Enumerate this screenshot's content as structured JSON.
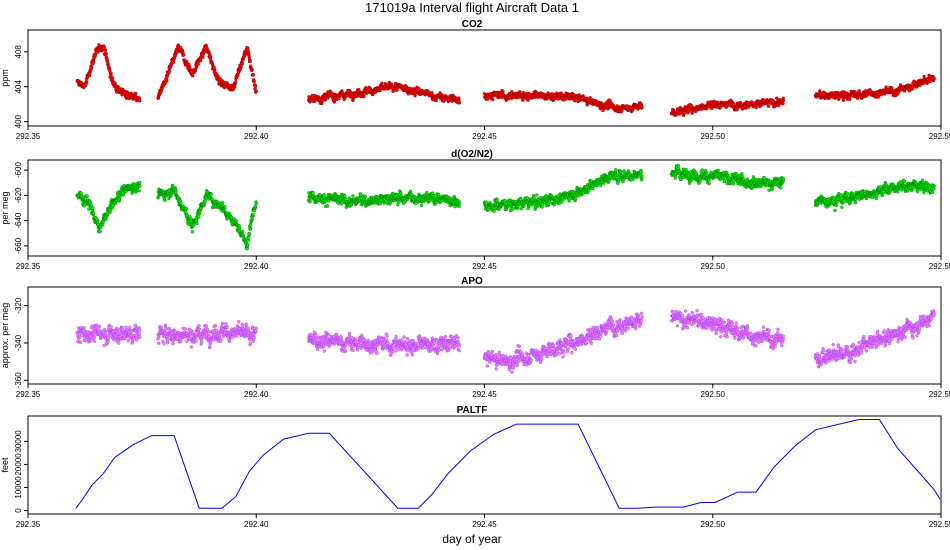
{
  "title": "171019a   Interval flight Aircraft Data 1",
  "xlabel": "day of year",
  "chart_data": [
    {
      "type": "scatter",
      "title": "CO2",
      "ylabel": "ppm",
      "color": "#ff0000",
      "edge": "#8b0000",
      "xlim": [
        292.35,
        292.55
      ],
      "ylim": [
        399.5,
        410.5
      ],
      "xticks": [
        "292.35",
        "292.40",
        "292.45",
        "292.50",
        "292.55"
      ],
      "xtick_values": [
        292.35,
        292.4,
        292.45,
        292.5,
        292.55
      ],
      "yticks": [
        "400",
        "404",
        "408"
      ],
      "ytick_values": [
        400,
        404,
        408
      ],
      "noise": 0.4,
      "segments": [
        {
          "x": [
            292.3608,
            292.3625,
            292.3645,
            292.3665,
            292.3685,
            292.3705,
            292.3725,
            292.3745
          ],
          "y": [
            404.5,
            404.0,
            407.5,
            408.8,
            404.5,
            403.5,
            403.0,
            402.5
          ]
        },
        {
          "x": [
            292.3785,
            292.38,
            292.383,
            292.386,
            292.389,
            292.392,
            292.395,
            292.398,
            292.4
          ],
          "y": [
            403.0,
            404.5,
            408.5,
            405.5,
            408.5,
            404.5,
            404.0,
            408.5,
            403.5
          ]
        },
        {
          "x": [
            292.4115,
            292.418,
            292.425,
            292.43,
            292.435,
            292.44,
            292.4445
          ],
          "y": [
            402.5,
            403.0,
            403.5,
            404.0,
            403.5,
            402.8,
            402.5
          ]
        },
        {
          "x": [
            292.45,
            292.46,
            292.47,
            292.475,
            292.48,
            292.4845
          ],
          "y": [
            403.0,
            403.0,
            402.8,
            402.0,
            401.5,
            401.8
          ]
        },
        {
          "x": [
            292.491,
            292.5,
            292.51,
            292.5155
          ],
          "y": [
            401.0,
            402.0,
            402.0,
            402.3
          ]
        },
        {
          "x": [
            292.5225,
            292.53,
            292.54,
            292.5485
          ],
          "y": [
            403.0,
            403.0,
            403.5,
            405.0
          ]
        }
      ]
    },
    {
      "type": "scatter",
      "title": "d(O2/N2)",
      "ylabel": "per meg",
      "color": "#00ee00",
      "edge": "#006400",
      "xlim": [
        292.35,
        292.55
      ],
      "ylim": [
        -668,
        -592
      ],
      "xticks": [
        "292.35",
        "292.40",
        "292.45",
        "292.50",
        "292.55"
      ],
      "xtick_values": [
        292.35,
        292.4,
        292.45,
        292.5,
        292.55
      ],
      "yticks": [
        "-660",
        "-640",
        "-620",
        "-600"
      ],
      "ytick_values": [
        -660,
        -640,
        -620,
        -600
      ],
      "noise": 4,
      "segments": [
        {
          "x": [
            292.3608,
            292.3635,
            292.3655,
            292.368,
            292.371,
            292.3745
          ],
          "y": [
            -620,
            -625,
            -648,
            -630,
            -615,
            -612
          ]
        },
        {
          "x": [
            292.3785,
            292.382,
            292.386,
            292.389,
            292.393,
            292.396,
            292.398,
            292.4
          ],
          "y": [
            -620,
            -615,
            -645,
            -620,
            -630,
            -645,
            -660,
            -622
          ]
        },
        {
          "x": [
            292.4115,
            292.42,
            292.43,
            292.44,
            292.4445
          ],
          "y": [
            -620,
            -625,
            -622,
            -622,
            -625
          ]
        },
        {
          "x": [
            292.45,
            292.46,
            292.467,
            292.472,
            292.477,
            292.4845
          ],
          "y": [
            -628,
            -626,
            -622,
            -615,
            -605,
            -603
          ]
        },
        {
          "x": [
            292.491,
            292.5,
            292.51,
            292.5155
          ],
          "y": [
            -602,
            -605,
            -610,
            -610
          ]
        },
        {
          "x": [
            292.5225,
            292.53,
            292.538,
            292.545,
            292.5485
          ],
          "y": [
            -625,
            -622,
            -615,
            -612,
            -615
          ]
        }
      ]
    },
    {
      "type": "scatter",
      "title": "APO",
      "ylabel": "approx. per meg",
      "color": "#ee82ee",
      "edge": "#9b30ff",
      "xlim": [
        292.35,
        292.55
      ],
      "ylim": [
        -362,
        -310
      ],
      "xticks": [
        "292.35",
        "292.40",
        "292.45",
        "292.50",
        "292.55"
      ],
      "xtick_values": [
        292.35,
        292.4,
        292.45,
        292.5,
        292.55
      ],
      "yticks": [
        "-360",
        "-340",
        "-320"
      ],
      "ytick_values": [
        -360,
        -340,
        -320
      ],
      "noise": 4,
      "segments": [
        {
          "x": [
            292.3608,
            292.365,
            292.37,
            292.3745
          ],
          "y": [
            -335,
            -335,
            -335,
            -335
          ]
        },
        {
          "x": [
            292.3785,
            292.385,
            292.392,
            292.4
          ],
          "y": [
            -335,
            -336,
            -334,
            -336
          ]
        },
        {
          "x": [
            292.4115,
            292.42,
            292.43,
            292.44,
            292.4445
          ],
          "y": [
            -338,
            -340,
            -341,
            -341,
            -340
          ]
        },
        {
          "x": [
            292.45,
            292.455,
            292.46,
            292.467,
            292.473,
            292.478,
            292.4845
          ],
          "y": [
            -348,
            -350,
            -347,
            -342,
            -336,
            -330,
            -328
          ]
        },
        {
          "x": [
            292.491,
            292.497,
            292.503,
            292.51,
            292.5155
          ],
          "y": [
            -327,
            -328,
            -332,
            -337,
            -338
          ]
        },
        {
          "x": [
            292.5225,
            292.53,
            292.538,
            292.545,
            292.5485
          ],
          "y": [
            -348,
            -345,
            -337,
            -330,
            -325
          ]
        }
      ]
    },
    {
      "type": "line",
      "title": "PALTF",
      "ylabel": "feet",
      "color": "#0000ff",
      "xlim": [
        292.35,
        292.55
      ],
      "ylim": [
        -1500,
        41000
      ],
      "xticks": [
        "292.35",
        "292.40",
        "292.45",
        "292.50",
        "292.55"
      ],
      "xtick_values": [
        292.35,
        292.4,
        292.45,
        292.5,
        292.55
      ],
      "yticks": [
        "0",
        "10000",
        "20000",
        "30000"
      ],
      "ytick_values": [
        0,
        10000,
        20000,
        30000
      ],
      "x": [
        292.3605,
        292.362,
        292.364,
        292.3665,
        292.369,
        292.373,
        292.377,
        292.382,
        292.3875,
        292.3925,
        292.3955,
        292.3985,
        292.4015,
        292.406,
        292.4115,
        292.416,
        292.431,
        292.4355,
        292.4385,
        292.442,
        292.447,
        292.452,
        292.457,
        292.4705,
        292.4795,
        292.4835,
        292.4875,
        292.4935,
        292.4975,
        292.5005,
        292.5055,
        292.5095,
        292.5135,
        292.518,
        292.5225,
        292.532,
        292.5365,
        292.5405,
        292.5445,
        292.5485,
        292.551
      ],
      "y": [
        1000,
        5000,
        11000,
        16000,
        23000,
        28500,
        32500,
        32500,
        1000,
        1000,
        6000,
        17000,
        24000,
        31000,
        33500,
        33500,
        1000,
        1000,
        7000,
        16000,
        26000,
        33000,
        37500,
        37500,
        1000,
        1000,
        1500,
        1500,
        3500,
        3500,
        8000,
        8000,
        19000,
        28000,
        35000,
        39500,
        39500,
        27000,
        18000,
        9000,
        1000
      ]
    }
  ]
}
